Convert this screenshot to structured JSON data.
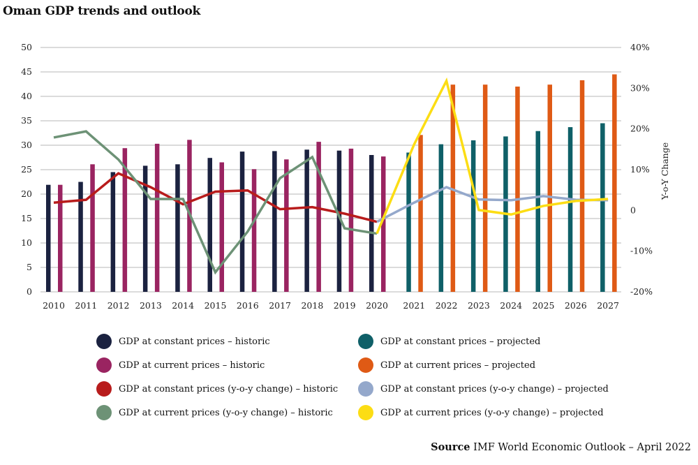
{
  "title": "Oman GDP trends and outlook",
  "source": {
    "label": "Source",
    "text": "IMF World Economic Outlook – April 2022"
  },
  "chart_data": {
    "type": "bar+line",
    "title": "Oman GDP trends and outlook",
    "categories": [
      "2010",
      "2011",
      "2012",
      "2013",
      "2014",
      "2015",
      "2016",
      "2017",
      "2018",
      "2019",
      "2020",
      "2021",
      "2022",
      "2023",
      "2024",
      "2025",
      "2026",
      "2027"
    ],
    "y_left": {
      "label": "",
      "range": [
        0,
        50
      ],
      "ticks": [
        0,
        5,
        10,
        15,
        20,
        25,
        30,
        35,
        40,
        45,
        50
      ]
    },
    "y_right": {
      "label": "Y-o-Y Change",
      "range": [
        -20,
        40
      ],
      "ticks": [
        "-20%",
        "-10%",
        "0",
        "10%",
        "20%",
        "30%",
        "40%"
      ],
      "tick_values": [
        -20,
        -10,
        0,
        10,
        20,
        30,
        40
      ]
    },
    "grid": true,
    "legend_position": "bottom",
    "series": [
      {
        "name": "GDP at constant prices – historic",
        "type": "bar",
        "axis": "left",
        "slot": 0,
        "color": "#1b2240",
        "values": [
          21.9,
          22.5,
          24.5,
          25.8,
          26.1,
          27.4,
          28.7,
          28.8,
          29.1,
          28.9,
          28.0,
          null,
          null,
          null,
          null,
          null,
          null,
          null
        ]
      },
      {
        "name": "GDP at current prices – historic",
        "type": "bar",
        "axis": "left",
        "slot": 1,
        "color": "#9a2461",
        "values": [
          21.9,
          26.1,
          29.4,
          30.3,
          31.1,
          26.5,
          25.1,
          27.1,
          30.7,
          29.3,
          27.7,
          null,
          null,
          null,
          null,
          null,
          null,
          null
        ]
      },
      {
        "name": "GDP at constant prices (y-o-y change) – historic",
        "type": "line",
        "axis": "right",
        "color": "#b81c1c",
        "values": [
          1.9,
          2.6,
          9.1,
          5.7,
          1.5,
          4.6,
          4.9,
          0.3,
          0.8,
          -0.8,
          -2.8,
          null,
          null,
          null,
          null,
          null,
          null,
          null
        ]
      },
      {
        "name": "GDP at current prices (y-o-y change) – historic",
        "type": "line",
        "axis": "right",
        "color": "#6d9276",
        "values": [
          17.9,
          19.4,
          12.5,
          2.8,
          2.8,
          -15.2,
          -5.2,
          7.9,
          13.1,
          -4.4,
          -5.7,
          null,
          null,
          null,
          null,
          null,
          null,
          null
        ]
      },
      {
        "name": "GDP at constant prices – projected",
        "type": "bar",
        "axis": "left",
        "slot": 0,
        "color": "#0f6068",
        "values": [
          null,
          null,
          null,
          null,
          null,
          null,
          null,
          null,
          null,
          null,
          null,
          28.5,
          30.2,
          31.0,
          31.8,
          32.9,
          33.7,
          34.5
        ]
      },
      {
        "name": "GDP at current prices – projected",
        "type": "bar",
        "axis": "left",
        "slot": 1,
        "color": "#df5a15",
        "values": [
          null,
          null,
          null,
          null,
          null,
          null,
          null,
          null,
          null,
          null,
          null,
          32.1,
          42.4,
          42.4,
          42.0,
          42.4,
          43.3,
          44.5
        ]
      },
      {
        "name": "GDP at constant prices (y-o-y change) – projected",
        "type": "line",
        "axis": "right",
        "color": "#94a8cb",
        "values": [
          null,
          null,
          null,
          null,
          null,
          null,
          null,
          null,
          null,
          null,
          -2.8,
          1.9,
          5.7,
          2.7,
          2.5,
          3.5,
          2.6,
          2.5
        ]
      },
      {
        "name": "GDP at current prices (y-o-y change) – projected",
        "type": "line",
        "axis": "right",
        "color": "#fcdd14",
        "values": [
          null,
          null,
          null,
          null,
          null,
          null,
          null,
          null,
          null,
          null,
          -5.7,
          16.2,
          31.8,
          0.1,
          -1.0,
          1.1,
          2.3,
          2.8
        ]
      }
    ]
  },
  "legend_order": [
    0,
    4,
    1,
    5,
    2,
    6,
    3,
    7
  ]
}
